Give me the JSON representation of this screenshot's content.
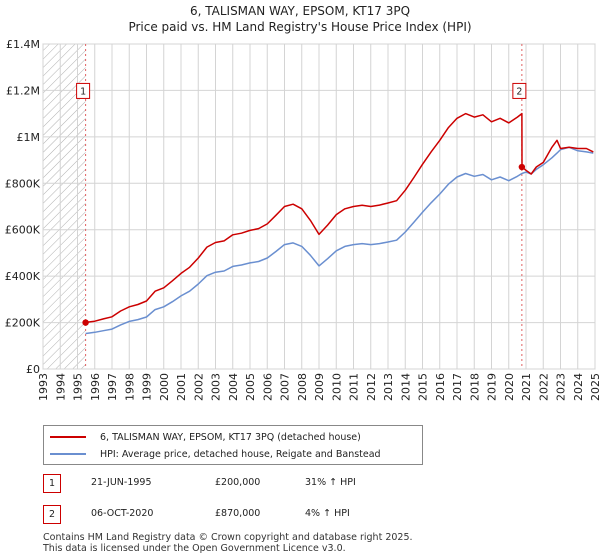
{
  "chart_data": {
    "type": "line",
    "title": "6, TALISMAN WAY, EPSOM, KT17 3PQ",
    "subtitle": "Price paid vs. HM Land Registry's House Price Index (HPI)",
    "xlim": [
      1993,
      2025
    ],
    "ylim": [
      0,
      1400000
    ],
    "x_ticks": [
      1993,
      1994,
      1995,
      1996,
      1997,
      1998,
      1999,
      2000,
      2001,
      2002,
      2003,
      2004,
      2005,
      2006,
      2007,
      2008,
      2009,
      2010,
      2011,
      2012,
      2013,
      2014,
      2015,
      2016,
      2017,
      2018,
      2019,
      2020,
      2021,
      2022,
      2023,
      2024,
      2025
    ],
    "x_tick_labels": [
      "1993",
      "1994",
      "1995",
      "1996",
      "1997",
      "1998",
      "1999",
      "2000",
      "2001",
      "2002",
      "2003",
      "2004",
      "2005",
      "2006",
      "2007",
      "2008",
      "2009",
      "2010",
      "2011",
      "2012",
      "2013",
      "2014",
      "2015",
      "2016",
      "2017",
      "2018",
      "2019",
      "2020",
      "2021",
      "2022",
      "2023",
      "2024",
      "2025"
    ],
    "y_ticks": [
      0,
      200000,
      400000,
      600000,
      800000,
      1000000,
      1200000,
      1400000
    ],
    "y_tick_labels": [
      "£0",
      "£200K",
      "£400K",
      "£600K",
      "£800K",
      "£1M",
      "£1.2M",
      "£1.4M"
    ],
    "hatch_region": [
      1993,
      1995.47
    ],
    "series": [
      {
        "name": "6, TALISMAN WAY, EPSOM, KT17 3PQ (detached house)",
        "color": "#cc0000",
        "x": [
          1995.47,
          1995.7,
          1996,
          1996.5,
          1997,
          1997.5,
          1998,
          1998.5,
          1999,
          1999.5,
          2000,
          2000.5,
          2001,
          2001.5,
          2002,
          2002.5,
          2003,
          2003.5,
          2004,
          2004.5,
          2005,
          2005.5,
          2006,
          2006.5,
          2007,
          2007.5,
          2008,
          2008.5,
          2009,
          2009.5,
          2010,
          2010.5,
          2011,
          2011.5,
          2012,
          2012.5,
          2013,
          2013.5,
          2014,
          2014.5,
          2015,
          2015.5,
          2016,
          2016.5,
          2017,
          2017.5,
          2018,
          2018.5,
          2019,
          2019.5,
          2020,
          2020.5,
          2020.76,
          2020.77,
          2021,
          2021.3,
          2021.6,
          2022,
          2022.5,
          2022.8,
          2023,
          2023.5,
          2024,
          2024.5,
          2024.9
        ],
        "values": [
          200000,
          203000,
          206000,
          216000,
          225000,
          250000,
          268000,
          278000,
          293000,
          335000,
          350000,
          380000,
          412000,
          438000,
          478000,
          525000,
          545000,
          552000,
          578000,
          585000,
          597000,
          605000,
          625000,
          662000,
          700000,
          710000,
          690000,
          640000,
          580000,
          620000,
          665000,
          690000,
          700000,
          705000,
          700000,
          706000,
          715000,
          725000,
          770000,
          825000,
          882000,
          935000,
          985000,
          1040000,
          1080000,
          1100000,
          1085000,
          1095000,
          1065000,
          1080000,
          1060000,
          1085000,
          1100000,
          870000,
          856000,
          840000,
          870000,
          890000,
          955000,
          985000,
          950000,
          955000,
          950000,
          950000,
          935000
        ]
      },
      {
        "name": "HPI: Average price, detached house, Reigate and Banstead",
        "color": "#6a8fd0",
        "x": [
          1995.47,
          1995.7,
          1996,
          1996.5,
          1997,
          1997.5,
          1998,
          1998.5,
          1999,
          1999.5,
          2000,
          2000.5,
          2001,
          2001.5,
          2002,
          2002.5,
          2003,
          2003.5,
          2004,
          2004.5,
          2005,
          2005.5,
          2006,
          2006.5,
          2007,
          2007.5,
          2008,
          2008.5,
          2009,
          2009.5,
          2010,
          2010.5,
          2011,
          2011.5,
          2012,
          2012.5,
          2013,
          2013.5,
          2014,
          2014.5,
          2015,
          2015.5,
          2016,
          2016.5,
          2017,
          2017.5,
          2018,
          2018.5,
          2019,
          2019.5,
          2020,
          2020.5,
          2020.76,
          2021,
          2021.3,
          2021.6,
          2022,
          2022.5,
          2022.8,
          2023,
          2023.5,
          2024,
          2024.5,
          2024.9
        ],
        "values": [
          153000,
          155000,
          158000,
          165000,
          172000,
          190000,
          205000,
          213000,
          224000,
          256000,
          268000,
          290000,
          315000,
          335000,
          366000,
          402000,
          417000,
          422000,
          442000,
          448000,
          457000,
          463000,
          478000,
          506000,
          536000,
          543000,
          528000,
          490000,
          444000,
          475000,
          509000,
          528000,
          536000,
          540000,
          536000,
          540000,
          547000,
          555000,
          590000,
          632000,
          675000,
          716000,
          754000,
          796000,
          827000,
          842000,
          830000,
          838000,
          815000,
          827000,
          811000,
          830000,
          842000,
          848000,
          840000,
          860000,
          880000,
          910000,
          930000,
          945000,
          955000,
          940000,
          935000,
          930000
        ]
      }
    ],
    "annotations": [
      {
        "label": "1",
        "x": 1995.47,
        "y": 200000
      },
      {
        "label": "2",
        "x": 2020.76,
        "y": 870000
      }
    ]
  },
  "legend": {
    "property": "6, TALISMAN WAY, EPSOM, KT17 3PQ (detached house)",
    "hpi": "HPI: Average price, detached house, Reigate and Banstead"
  },
  "sales": [
    {
      "label": "1",
      "date": "21-JUN-1995",
      "price": "£200,000",
      "hpi_diff": "31% ↑ HPI"
    },
    {
      "label": "2",
      "date": "06-OCT-2020",
      "price": "£870,000",
      "hpi_diff": "4% ↑ HPI"
    }
  ],
  "footer": {
    "line1": "Contains HM Land Registry data © Crown copyright and database right 2025.",
    "line2": "This data is licensed under the Open Government Licence v3.0."
  },
  "colors": {
    "property": "#cc0000",
    "hpi": "#6a8fd0",
    "grid": "#d4d4d4",
    "hatch": "#999999"
  }
}
